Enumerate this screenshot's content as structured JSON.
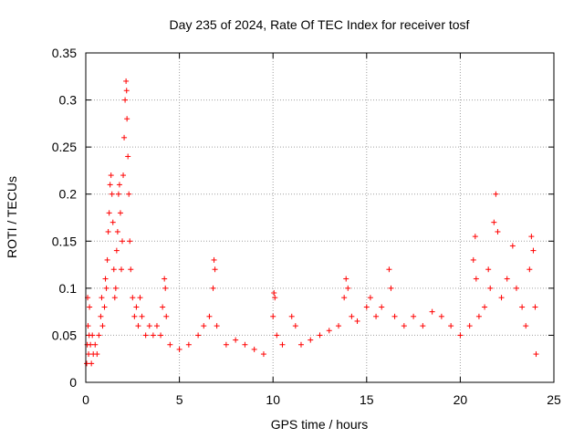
{
  "chart_data": {
    "type": "scatter",
    "title": "Day 235 of 2024, Rate Of TEC Index for receiver tosf",
    "xlabel": "GPS time / hours",
    "ylabel": "ROTI / TECUs",
    "xlim": [
      0,
      25
    ],
    "ylim": [
      0,
      0.35
    ],
    "xticks": [
      0,
      5,
      10,
      15,
      20,
      25
    ],
    "xtick_labels": [
      "0",
      "5",
      "10",
      "15",
      "20",
      "25"
    ],
    "yticks": [
      0,
      0.05,
      0.1,
      0.15,
      0.2,
      0.25,
      0.3,
      0.35
    ],
    "ytick_labels": [
      "0",
      "0.05",
      "0.1",
      "0.15",
      "0.2",
      "0.25",
      "0.3",
      "0.35"
    ],
    "grid": true,
    "marker": "+",
    "marker_color": "#ff0000",
    "series": [
      {
        "name": "ROTI",
        "points": [
          [
            0.05,
            0.02
          ],
          [
            0.08,
            0.04
          ],
          [
            0.1,
            0.09
          ],
          [
            0.12,
            0.06
          ],
          [
            0.15,
            0.03
          ],
          [
            0.18,
            0.05
          ],
          [
            0.2,
            0.08
          ],
          [
            0.25,
            0.04
          ],
          [
            0.3,
            0.02
          ],
          [
            0.35,
            0.05
          ],
          [
            0.4,
            0.03
          ],
          [
            0.5,
            0.04
          ],
          [
            0.6,
            0.03
          ],
          [
            0.7,
            0.05
          ],
          [
            0.8,
            0.07
          ],
          [
            0.85,
            0.09
          ],
          [
            0.9,
            0.06
          ],
          [
            1.0,
            0.08
          ],
          [
            1.05,
            0.11
          ],
          [
            1.1,
            0.1
          ],
          [
            1.15,
            0.13
          ],
          [
            1.2,
            0.16
          ],
          [
            1.25,
            0.18
          ],
          [
            1.3,
            0.21
          ],
          [
            1.35,
            0.22
          ],
          [
            1.4,
            0.2
          ],
          [
            1.45,
            0.17
          ],
          [
            1.5,
            0.12
          ],
          [
            1.55,
            0.09
          ],
          [
            1.6,
            0.1
          ],
          [
            1.65,
            0.14
          ],
          [
            1.7,
            0.16
          ],
          [
            1.75,
            0.2
          ],
          [
            1.8,
            0.21
          ],
          [
            1.85,
            0.18
          ],
          [
            1.9,
            0.12
          ],
          [
            1.95,
            0.15
          ],
          [
            2.0,
            0.22
          ],
          [
            2.05,
            0.26
          ],
          [
            2.1,
            0.3
          ],
          [
            2.15,
            0.32
          ],
          [
            2.18,
            0.31
          ],
          [
            2.2,
            0.28
          ],
          [
            2.25,
            0.24
          ],
          [
            2.3,
            0.2
          ],
          [
            2.35,
            0.15
          ],
          [
            2.4,
            0.12
          ],
          [
            2.5,
            0.09
          ],
          [
            2.6,
            0.07
          ],
          [
            2.7,
            0.08
          ],
          [
            2.8,
            0.06
          ],
          [
            2.9,
            0.09
          ],
          [
            3.0,
            0.07
          ],
          [
            3.2,
            0.05
          ],
          [
            3.4,
            0.06
          ],
          [
            3.6,
            0.05
          ],
          [
            3.8,
            0.06
          ],
          [
            4.0,
            0.05
          ],
          [
            4.1,
            0.08
          ],
          [
            4.2,
            0.11
          ],
          [
            4.25,
            0.1
          ],
          [
            4.3,
            0.07
          ],
          [
            4.5,
            0.04
          ],
          [
            5.0,
            0.035
          ],
          [
            5.5,
            0.04
          ],
          [
            6.0,
            0.05
          ],
          [
            6.3,
            0.06
          ],
          [
            6.6,
            0.07
          ],
          [
            6.8,
            0.1
          ],
          [
            6.85,
            0.13
          ],
          [
            6.9,
            0.12
          ],
          [
            7.0,
            0.06
          ],
          [
            7.5,
            0.04
          ],
          [
            8.0,
            0.045
          ],
          [
            8.5,
            0.04
          ],
          [
            9.0,
            0.035
          ],
          [
            9.5,
            0.03
          ],
          [
            10.0,
            0.07
          ],
          [
            10.05,
            0.095
          ],
          [
            10.1,
            0.09
          ],
          [
            10.2,
            0.05
          ],
          [
            10.5,
            0.04
          ],
          [
            11.0,
            0.07
          ],
          [
            11.2,
            0.06
          ],
          [
            11.5,
            0.04
          ],
          [
            12.0,
            0.045
          ],
          [
            12.5,
            0.05
          ],
          [
            13.0,
            0.055
          ],
          [
            13.5,
            0.06
          ],
          [
            13.8,
            0.09
          ],
          [
            13.9,
            0.11
          ],
          [
            14.0,
            0.1
          ],
          [
            14.2,
            0.07
          ],
          [
            14.5,
            0.065
          ],
          [
            15.0,
            0.08
          ],
          [
            15.2,
            0.09
          ],
          [
            15.5,
            0.07
          ],
          [
            15.8,
            0.08
          ],
          [
            16.2,
            0.12
          ],
          [
            16.3,
            0.1
          ],
          [
            16.5,
            0.07
          ],
          [
            17.0,
            0.06
          ],
          [
            17.5,
            0.07
          ],
          [
            18.0,
            0.06
          ],
          [
            18.5,
            0.075
          ],
          [
            19.0,
            0.07
          ],
          [
            19.5,
            0.06
          ],
          [
            20.0,
            0.05
          ],
          [
            20.5,
            0.06
          ],
          [
            20.7,
            0.13
          ],
          [
            20.8,
            0.155
          ],
          [
            20.85,
            0.11
          ],
          [
            21.0,
            0.07
          ],
          [
            21.3,
            0.08
          ],
          [
            21.5,
            0.12
          ],
          [
            21.6,
            0.1
          ],
          [
            21.8,
            0.17
          ],
          [
            21.9,
            0.2
          ],
          [
            22.0,
            0.16
          ],
          [
            22.2,
            0.09
          ],
          [
            22.5,
            0.11
          ],
          [
            22.8,
            0.145
          ],
          [
            23.0,
            0.1
          ],
          [
            23.3,
            0.08
          ],
          [
            23.5,
            0.06
          ],
          [
            23.7,
            0.12
          ],
          [
            23.8,
            0.155
          ],
          [
            23.9,
            0.14
          ],
          [
            24.0,
            0.08
          ],
          [
            24.05,
            0.03
          ]
        ]
      }
    ]
  }
}
